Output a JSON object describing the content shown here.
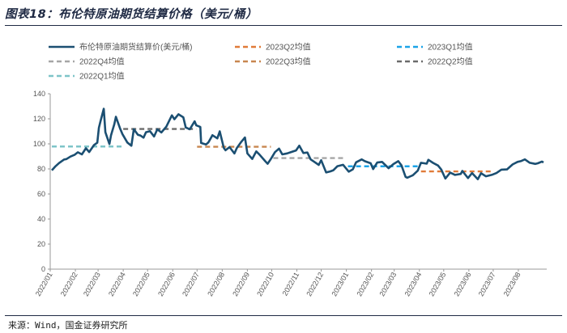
{
  "title": "图表18：布伦特原油期货结算价格（美元/桶）",
  "source": "来源：Wind，国金证券研究所",
  "chart_data": {
    "type": "line",
    "title": "布伦特原油期货结算价格（美元/桶）",
    "xlabel": "",
    "ylabel": "",
    "ylim": [
      0,
      140
    ],
    "yticks": [
      0,
      20,
      40,
      60,
      80,
      100,
      120,
      140
    ],
    "x_domain": [
      "2022/01/01",
      "2023/09/05"
    ],
    "x_tick_labels": [
      "2022/01",
      "2022/02",
      "2022/03",
      "2022/04",
      "2022/05",
      "2022/06",
      "2022/07",
      "2022/08",
      "2022/09",
      "2022/10",
      "2022/11",
      "2022/12",
      "2023/01",
      "2023/02",
      "2023/03",
      "2023/04",
      "2023/05",
      "2023/06",
      "2023/07",
      "2023/08"
    ],
    "grid": false,
    "legend_position": "top",
    "series": [
      {
        "name": "布伦特原油期货结算价(美元/桶)",
        "style": "solid",
        "color": "#1b4f72",
        "points": [
          [
            "2022/01/03",
            78.9
          ],
          [
            "2022/01/07",
            81.8
          ],
          [
            "2022/01/12",
            84.7
          ],
          [
            "2022/01/18",
            87.5
          ],
          [
            "2022/01/21",
            87.9
          ],
          [
            "2022/01/26",
            89.9
          ],
          [
            "2022/01/31",
            91.2
          ],
          [
            "2022/02/04",
            93.3
          ],
          [
            "2022/02/09",
            91.6
          ],
          [
            "2022/02/14",
            96.5
          ],
          [
            "2022/02/18",
            93.5
          ],
          [
            "2022/02/24",
            99.1
          ],
          [
            "2022/02/28",
            100.9
          ],
          [
            "2022/03/02",
            112.9
          ],
          [
            "2022/03/04",
            118.1
          ],
          [
            "2022/03/08",
            127.98
          ],
          [
            "2022/03/10",
            109.3
          ],
          [
            "2022/03/15",
            99.9
          ],
          [
            "2022/03/17",
            107.0
          ],
          [
            "2022/03/21",
            115.6
          ],
          [
            "2022/03/23",
            121.6
          ],
          [
            "2022/03/28",
            112.5
          ],
          [
            "2022/03/31",
            107.9
          ],
          [
            "2022/04/06",
            101.1
          ],
          [
            "2022/04/11",
            98.5
          ],
          [
            "2022/04/14",
            111.7
          ],
          [
            "2022/04/19",
            107.3
          ],
          [
            "2022/04/22",
            106.7
          ],
          [
            "2022/04/26",
            105.0
          ],
          [
            "2022/04/29",
            109.3
          ],
          [
            "2022/05/04",
            110.1
          ],
          [
            "2022/05/09",
            105.9
          ],
          [
            "2022/05/13",
            111.6
          ],
          [
            "2022/05/18",
            109.1
          ],
          [
            "2022/05/24",
            113.6
          ],
          [
            "2022/05/31",
            122.8
          ],
          [
            "2022/06/03",
            119.7
          ],
          [
            "2022/06/08",
            123.6
          ],
          [
            "2022/06/14",
            121.2
          ],
          [
            "2022/06/17",
            113.1
          ],
          [
            "2022/06/22",
            111.7
          ],
          [
            "2022/06/28",
            117.98
          ],
          [
            "2022/06/30",
            114.8
          ],
          [
            "2022/07/05",
            113.5
          ],
          [
            "2022/07/06",
            100.7
          ],
          [
            "2022/07/12",
            99.5
          ],
          [
            "2022/07/15",
            101.2
          ],
          [
            "2022/07/20",
            106.9
          ],
          [
            "2022/07/26",
            104.4
          ],
          [
            "2022/07/29",
            110.0
          ],
          [
            "2022/08/03",
            96.8
          ],
          [
            "2022/08/05",
            94.9
          ],
          [
            "2022/08/10",
            97.4
          ],
          [
            "2022/08/16",
            92.3
          ],
          [
            "2022/08/19",
            96.7
          ],
          [
            "2022/08/24",
            101.2
          ],
          [
            "2022/08/29",
            105.1
          ],
          [
            "2022/09/01",
            92.4
          ],
          [
            "2022/09/07",
            88.0
          ],
          [
            "2022/09/12",
            94.0
          ],
          [
            "2022/09/16",
            91.4
          ],
          [
            "2022/09/23",
            86.2
          ],
          [
            "2022/09/26",
            84.1
          ],
          [
            "2022/09/30",
            87.96
          ],
          [
            "2022/10/05",
            93.4
          ],
          [
            "2022/10/10",
            96.2
          ],
          [
            "2022/10/14",
            91.6
          ],
          [
            "2022/10/20",
            92.4
          ],
          [
            "2022/10/25",
            93.5
          ],
          [
            "2022/10/31",
            94.8
          ],
          [
            "2022/11/04",
            98.6
          ],
          [
            "2022/11/09",
            92.7
          ],
          [
            "2022/11/14",
            93.1
          ],
          [
            "2022/11/18",
            87.6
          ],
          [
            "2022/11/23",
            85.4
          ],
          [
            "2022/11/28",
            83.2
          ],
          [
            "2022/12/01",
            87.0
          ],
          [
            "2022/12/07",
            77.2
          ],
          [
            "2022/12/12",
            78.0
          ],
          [
            "2022/12/16",
            79.0
          ],
          [
            "2022/12/21",
            82.2
          ],
          [
            "2022/12/28",
            83.3
          ],
          [
            "2023/01/04",
            77.8
          ],
          [
            "2023/01/09",
            79.7
          ],
          [
            "2023/01/13",
            85.3
          ],
          [
            "2023/01/20",
            87.6
          ],
          [
            "2023/01/24",
            86.1
          ],
          [
            "2023/01/31",
            84.5
          ],
          [
            "2023/02/03",
            79.9
          ],
          [
            "2023/02/08",
            85.1
          ],
          [
            "2023/02/14",
            85.6
          ],
          [
            "2023/02/22",
            80.6
          ],
          [
            "2023/02/28",
            83.9
          ],
          [
            "2023/03/06",
            86.2
          ],
          [
            "2023/03/10",
            82.8
          ],
          [
            "2023/03/15",
            73.7
          ],
          [
            "2023/03/17",
            72.97
          ],
          [
            "2023/03/24",
            74.99
          ],
          [
            "2023/03/30",
            78.6
          ],
          [
            "2023/04/03",
            84.9
          ],
          [
            "2023/04/10",
            84.2
          ],
          [
            "2023/04/12",
            87.3
          ],
          [
            "2023/04/18",
            84.8
          ],
          [
            "2023/04/24",
            82.7
          ],
          [
            "2023/04/28",
            79.5
          ],
          [
            "2023/05/03",
            72.3
          ],
          [
            "2023/05/09",
            77.0
          ],
          [
            "2023/05/15",
            75.2
          ],
          [
            "2023/05/22",
            75.99
          ],
          [
            "2023/05/24",
            78.4
          ],
          [
            "2023/05/31",
            72.7
          ],
          [
            "2023/06/05",
            76.7
          ],
          [
            "2023/06/12",
            71.8
          ],
          [
            "2023/06/16",
            76.6
          ],
          [
            "2023/06/22",
            74.1
          ],
          [
            "2023/06/30",
            75.4
          ],
          [
            "2023/07/05",
            76.7
          ],
          [
            "2023/07/11",
            79.4
          ],
          [
            "2023/07/18",
            79.6
          ],
          [
            "2023/07/25",
            83.6
          ],
          [
            "2023/07/31",
            85.6
          ],
          [
            "2023/08/04",
            86.2
          ],
          [
            "2023/08/09",
            87.6
          ],
          [
            "2023/08/15",
            84.9
          ],
          [
            "2023/08/22",
            84.0
          ],
          [
            "2023/08/25",
            84.5
          ],
          [
            "2023/08/30",
            85.9
          ],
          [
            "2023/09/01",
            85.2
          ]
        ]
      },
      {
        "name": "2023Q2均值",
        "style": "dashed",
        "color": "#e07b39",
        "value": 78.0,
        "x_start": "2023/04/03",
        "x_end": "2023/06/30"
      },
      {
        "name": "2023Q1均值",
        "style": "dashed",
        "color": "#1aa3e8",
        "value": 82.1,
        "x_start": "2023/01/03",
        "x_end": "2023/03/31"
      },
      {
        "name": "2022Q4均值",
        "style": "dashed",
        "color": "#a6a6a6",
        "value": 88.7,
        "x_start": "2022/10/03",
        "x_end": "2022/12/30"
      },
      {
        "name": "2022Q3均值",
        "style": "dashed",
        "color": "#c8864f",
        "value": 97.7,
        "x_start": "2022/07/01",
        "x_end": "2022/09/30"
      },
      {
        "name": "2022Q2均值",
        "style": "dashed",
        "color": "#6b6b6b",
        "value": 111.9,
        "x_start": "2022/04/01",
        "x_end": "2022/06/30"
      },
      {
        "name": "2022Q1均值",
        "style": "dashed",
        "color": "#7ec4c8",
        "value": 97.9,
        "x_start": "2022/01/03",
        "x_end": "2022/03/31"
      }
    ]
  }
}
